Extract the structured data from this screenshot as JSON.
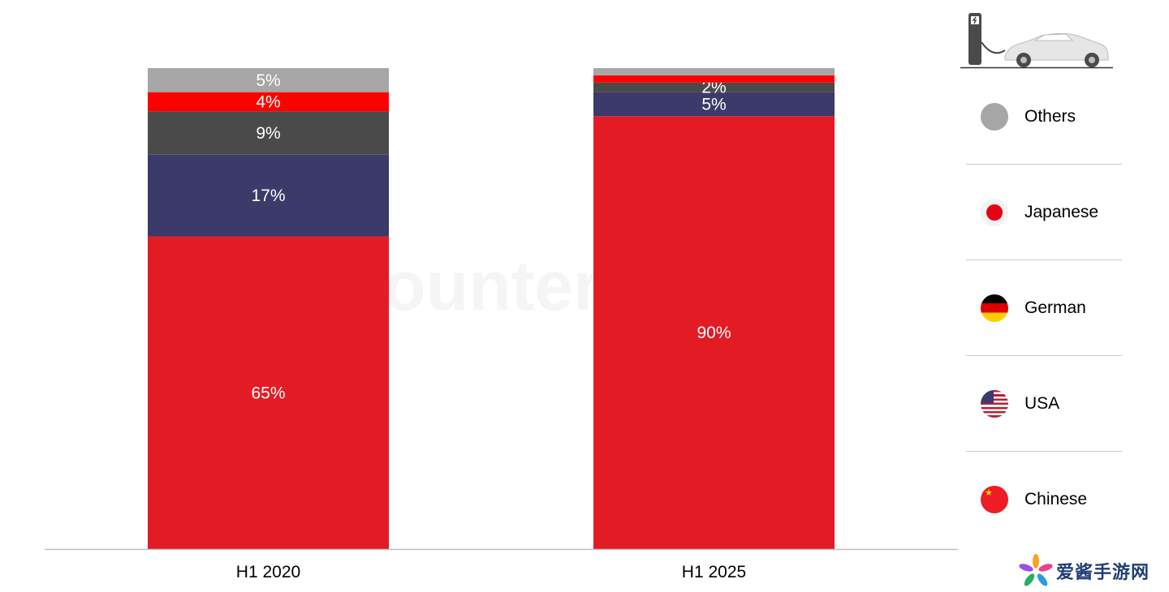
{
  "chart_data": {
    "type": "bar",
    "stacked": true,
    "categories": [
      "H1 2020",
      "H1 2025"
    ],
    "ylim": [
      0,
      100
    ],
    "series": [
      {
        "name": "Chinese",
        "color": "#e31b24",
        "values": [
          65,
          90
        ],
        "labels": [
          "65%",
          "90%"
        ]
      },
      {
        "name": "USA",
        "color": "#3b3a6b",
        "values": [
          17,
          5
        ],
        "labels": [
          "17%",
          "5%"
        ]
      },
      {
        "name": "German",
        "color": "#4a4a4a",
        "values": [
          9,
          2
        ],
        "labels": [
          "9%",
          "2%"
        ]
      },
      {
        "name": "Japanese",
        "color": "#ff0000",
        "values": [
          4,
          1.5
        ],
        "labels": [
          "4%",
          ""
        ]
      },
      {
        "name": "Others",
        "color": "#a6a6a6",
        "values": [
          5,
          1.5
        ],
        "labels": [
          "5%",
          ""
        ]
      }
    ],
    "legend_position": "right"
  },
  "legend": [
    {
      "label": "Others",
      "icon": "grey-dot-icon"
    },
    {
      "label": "Japanese",
      "icon": "japan-flag-icon"
    },
    {
      "label": "German",
      "icon": "germany-flag-icon"
    },
    {
      "label": "USA",
      "icon": "usa-flag-icon"
    },
    {
      "label": "Chinese",
      "icon": "china-flag-icon"
    }
  ],
  "watermark": "Counterpoint",
  "site_logo_text": "爱酱手游网"
}
